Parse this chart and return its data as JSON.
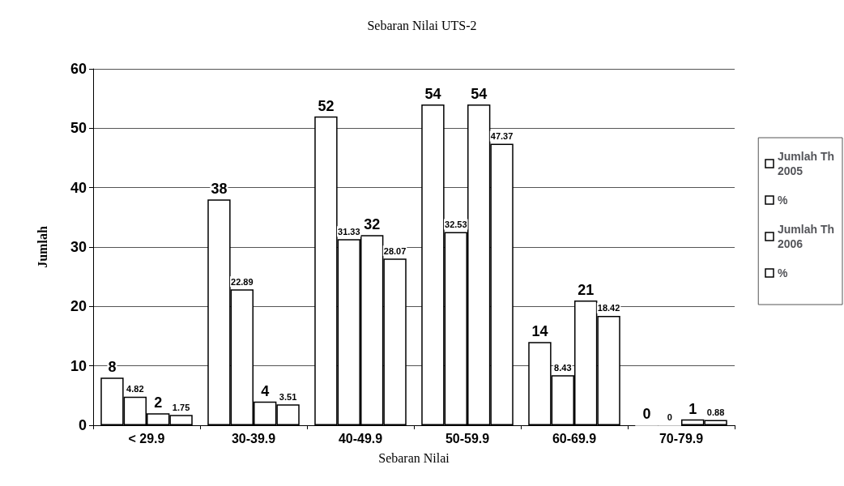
{
  "chart_data": {
    "type": "bar",
    "title": "Sebaran Nilai UTS-2",
    "xlabel": "Sebaran Nilai",
    "ylabel": "Jumlah",
    "categories": [
      "< 29.9",
      "30-39.9",
      "40-49.9",
      "50-59.9",
      "60-69.9",
      "70-79.9"
    ],
    "series": [
      {
        "name": "Jumlah Th 2005",
        "color": "#ffffff",
        "values": [
          8,
          38,
          52,
          54,
          14,
          0
        ]
      },
      {
        "name": "%",
        "color": "#ffffff",
        "values": [
          4.82,
          22.89,
          31.33,
          32.53,
          8.43,
          0
        ]
      },
      {
        "name": "Jumlah Th 2006",
        "color": "#ffffff",
        "values": [
          2,
          4,
          32,
          54,
          21,
          1
        ]
      },
      {
        "name": "%",
        "color": "#ffffff",
        "values": [
          1.75,
          3.51,
          28.07,
          47.37,
          18.42,
          0.88
        ]
      }
    ],
    "ylim": [
      0,
      60
    ],
    "yticks": [
      0,
      10,
      20,
      30,
      40,
      50,
      60
    ],
    "grid": true,
    "legend": "right",
    "data_labels": true
  }
}
